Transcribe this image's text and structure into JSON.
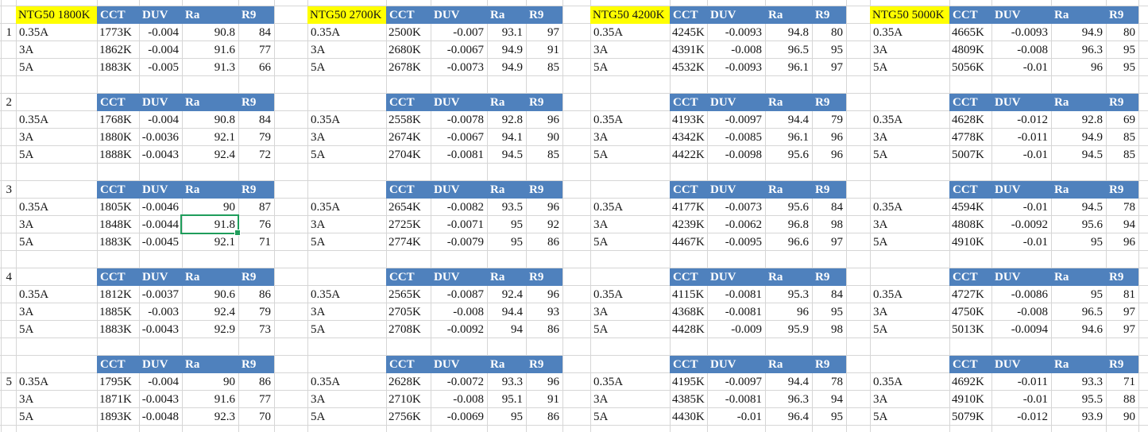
{
  "app": {
    "type": "spreadsheet-cells-view"
  },
  "colors": {
    "header_blue": "#4f81bd",
    "highlight_yellow": "#ffff00",
    "selection_green": "#1f9d5b",
    "gridline": "#d6d6d6",
    "text": "#141414"
  },
  "row_numbers": [
    "1",
    "2",
    "3",
    "4",
    "5"
  ],
  "column_headers": [
    "CCT",
    "DUV",
    "Ra",
    "R9"
  ],
  "current_labels": [
    "0.35A",
    "3A",
    "5A"
  ],
  "groups": [
    {
      "title": "NTG50 1800K",
      "sections": [
        {
          "rows": [
            [
              "1773K",
              "-0.004",
              "90.8",
              "84"
            ],
            [
              "1862K",
              "-0.004",
              "91.6",
              "77"
            ],
            [
              "1883K",
              "-0.005",
              "91.3",
              "66"
            ]
          ]
        },
        {
          "rows": [
            [
              "1768K",
              "-0.004",
              "90.8",
              "84"
            ],
            [
              "1880K",
              "-0.0036",
              "92.1",
              "79"
            ],
            [
              "1888K",
              "-0.0043",
              "92.4",
              "72"
            ]
          ]
        },
        {
          "rows": [
            [
              "1805K",
              "-0.0046",
              "90",
              "87"
            ],
            [
              "1848K",
              "-0.0044",
              "91.8",
              "76"
            ],
            [
              "1883K",
              "-0.0045",
              "92.1",
              "71"
            ]
          ]
        },
        {
          "rows": [
            [
              "1812K",
              "-0.0037",
              "90.6",
              "86"
            ],
            [
              "1885K",
              "-0.003",
              "92.4",
              "79"
            ],
            [
              "1883K",
              "-0.0043",
              "92.9",
              "73"
            ]
          ]
        },
        {
          "rows": [
            [
              "1795K",
              "-0.004",
              "90",
              "86"
            ],
            [
              "1871K",
              "-0.0043",
              "91.6",
              "77"
            ],
            [
              "1893K",
              "-0.0048",
              "92.3",
              "70"
            ]
          ]
        }
      ]
    },
    {
      "title": "NTG50 2700K",
      "sections": [
        {
          "rows": [
            [
              "2500K",
              "-0.007",
              "93.1",
              "97"
            ],
            [
              "2680K",
              "-0.0067",
              "94.9",
              "91"
            ],
            [
              "2678K",
              "-0.0073",
              "94.9",
              "85"
            ]
          ]
        },
        {
          "rows": [
            [
              "2558K",
              "-0.0078",
              "92.8",
              "96"
            ],
            [
              "2674K",
              "-0.0067",
              "94.1",
              "90"
            ],
            [
              "2704K",
              "-0.0081",
              "94.5",
              "85"
            ]
          ]
        },
        {
          "rows": [
            [
              "2654K",
              "-0.0082",
              "93.5",
              "96"
            ],
            [
              "2725K",
              "-0.0071",
              "95",
              "92"
            ],
            [
              "2774K",
              "-0.0079",
              "95",
              "86"
            ]
          ]
        },
        {
          "rows": [
            [
              "2565K",
              "-0.0087",
              "92.4",
              "96"
            ],
            [
              "2705K",
              "-0.008",
              "94.4",
              "93"
            ],
            [
              "2708K",
              "-0.0092",
              "94",
              "86"
            ]
          ]
        },
        {
          "rows": [
            [
              "2628K",
              "-0.0072",
              "93.3",
              "96"
            ],
            [
              "2710K",
              "-0.008",
              "95.1",
              "91"
            ],
            [
              "2756K",
              "-0.0069",
              "95",
              "86"
            ]
          ]
        }
      ]
    },
    {
      "title": "NTG50 4200K",
      "sections": [
        {
          "rows": [
            [
              "4245K",
              "-0.0093",
              "94.8",
              "80"
            ],
            [
              "4391K",
              "-0.008",
              "96.5",
              "95"
            ],
            [
              "4532K",
              "-0.0093",
              "96.1",
              "97"
            ]
          ]
        },
        {
          "rows": [
            [
              "4193K",
              "-0.0097",
              "94.4",
              "79"
            ],
            [
              "4342K",
              "-0.0085",
              "96.1",
              "96"
            ],
            [
              "4422K",
              "-0.0098",
              "95.6",
              "96"
            ]
          ]
        },
        {
          "rows": [
            [
              "4177K",
              "-0.0073",
              "95.6",
              "84"
            ],
            [
              "4239K",
              "-0.0062",
              "96.8",
              "98"
            ],
            [
              "4467K",
              "-0.0095",
              "96.6",
              "97"
            ]
          ]
        },
        {
          "rows": [
            [
              "4115K",
              "-0.0081",
              "95.3",
              "84"
            ],
            [
              "4368K",
              "-0.0081",
              "96",
              "95"
            ],
            [
              "4428K",
              "-0.009",
              "95.9",
              "98"
            ]
          ]
        },
        {
          "rows": [
            [
              "4195K",
              "-0.0097",
              "94.4",
              "78"
            ],
            [
              "4385K",
              "-0.0081",
              "96.3",
              "94"
            ],
            [
              "4430K",
              "-0.01",
              "96.4",
              "95"
            ]
          ]
        }
      ]
    },
    {
      "title": "NTG50 5000K",
      "sections": [
        {
          "rows": [
            [
              "4665K",
              "-0.0093",
              "94.9",
              "80"
            ],
            [
              "4809K",
              "-0.008",
              "96.3",
              "95"
            ],
            [
              "5056K",
              "-0.01",
              "96",
              "95"
            ]
          ]
        },
        {
          "rows": [
            [
              "4628K",
              "-0.012",
              "92.8",
              "69"
            ],
            [
              "4778K",
              "-0.011",
              "94.9",
              "85"
            ],
            [
              "5007K",
              "-0.01",
              "94.5",
              "85"
            ]
          ]
        },
        {
          "rows": [
            [
              "4594K",
              "-0.01",
              "94.5",
              "78"
            ],
            [
              "4808K",
              "-0.0092",
              "95.6",
              "94"
            ],
            [
              "4910K",
              "-0.01",
              "95",
              "96"
            ]
          ]
        },
        {
          "rows": [
            [
              "4727K",
              "-0.0086",
              "95",
              "81"
            ],
            [
              "4750K",
              "-0.008",
              "96.5",
              "97"
            ],
            [
              "5013K",
              "-0.0094",
              "94.6",
              "97"
            ]
          ]
        },
        {
          "rows": [
            [
              "4692K",
              "-0.011",
              "93.3",
              "71"
            ],
            [
              "4910K",
              "-0.01",
              "95.5",
              "88"
            ],
            [
              "5079K",
              "-0.012",
              "93.9",
              "90"
            ]
          ]
        }
      ]
    }
  ],
  "selection": {
    "group": 0,
    "section": 2,
    "row": 1,
    "column": "Ra",
    "value": "91.8"
  }
}
